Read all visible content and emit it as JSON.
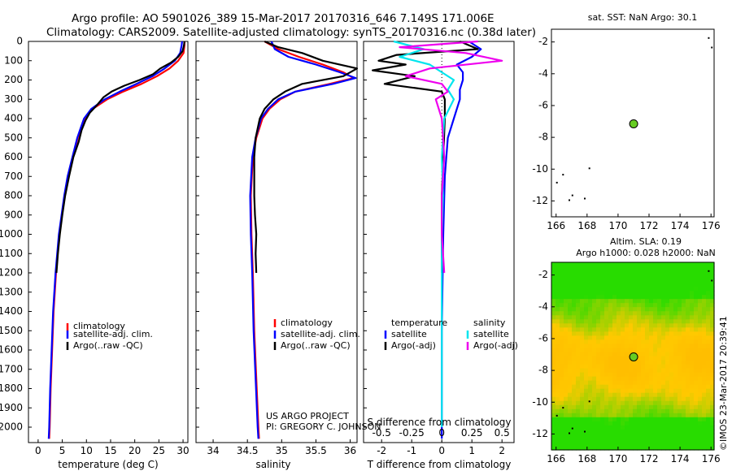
{
  "header": {
    "line1": "Argo profile: AO 5901026_389 15-Mar-2017 20170316_646 7.149S 171.006E",
    "line2": "Climatology: CARS2009. Satellite-adjusted climatology: synTS_20170316.nc (0.38d later)"
  },
  "colors": {
    "clim": "#ff0000",
    "sat": "#0000ff",
    "argo": "#000000",
    "sat_s": "#00e5ee",
    "argo_s": "#ee00ee",
    "marker": "#66cc22"
  },
  "depth_axis": {
    "ylim": [
      0,
      2080
    ],
    "ticks": [
      "0",
      "100",
      "200",
      "300",
      "400",
      "500",
      "600",
      "700",
      "800",
      "900",
      "1000",
      "1100",
      "1200",
      "1300",
      "1400",
      "1500",
      "1600",
      "1700",
      "1800",
      "1900",
      "2000"
    ]
  },
  "chart_data": [
    {
      "type": "line",
      "name": "temperature",
      "xlabel": "temperature (deg C)",
      "xlim": [
        -2,
        31
      ],
      "xticks": [
        "0",
        "5",
        "10",
        "15",
        "20",
        "25",
        "30"
      ],
      "legend": [
        "climatology",
        "satellite-adj. clim.",
        "Argo(..raw -QC)"
      ],
      "series": [
        {
          "name": "climatology",
          "color": "#ff0000",
          "depth": [
            0,
            20,
            60,
            100,
            140,
            180,
            220,
            260,
            300,
            350,
            400,
            450,
            500,
            600,
            700,
            800,
            1000,
            1200,
            1400,
            1600,
            1800,
            2000,
            2060
          ],
          "values": [
            30.3,
            30.3,
            30.1,
            29.0,
            27.2,
            24.6,
            21.4,
            17.6,
            14.3,
            11.3,
            9.6,
            8.9,
            8.2,
            7.2,
            6.2,
            5.5,
            4.4,
            3.7,
            3.2,
            2.9,
            2.6,
            2.4,
            2.3
          ]
        },
        {
          "name": "satellite-adj. clim.",
          "color": "#0000ff",
          "depth": [
            0,
            20,
            60,
            100,
            140,
            180,
            220,
            260,
            300,
            350,
            400,
            450,
            500,
            600,
            700,
            800,
            1000,
            1200,
            1400,
            1600,
            1800,
            2000,
            2060
          ],
          "values": [
            29.8,
            29.7,
            29.4,
            28.3,
            26.2,
            23.7,
            20.4,
            16.9,
            13.8,
            11.0,
            9.5,
            8.8,
            8.1,
            7.1,
            6.1,
            5.4,
            4.3,
            3.6,
            3.1,
            2.8,
            2.5,
            2.3,
            2.2
          ]
        },
        {
          "name": "Argo(..raw -QC)",
          "color": "#000000",
          "depth": [
            0,
            20,
            50,
            80,
            110,
            140,
            170,
            200,
            230,
            260,
            290,
            330,
            370,
            410,
            460,
            520,
            600,
            700,
            800,
            900,
            1000,
            1100,
            1200
          ],
          "values": [
            30.3,
            30.2,
            29.9,
            29.0,
            27.5,
            25.3,
            23.8,
            21.0,
            17.8,
            15.2,
            13.5,
            12.2,
            10.7,
            9.8,
            9.0,
            8.4,
            7.3,
            6.4,
            5.6,
            5.0,
            4.5,
            4.1,
            3.8
          ]
        }
      ]
    },
    {
      "type": "line",
      "name": "salinity",
      "xlabel": "salinity",
      "xlim": [
        33.75,
        36.1
      ],
      "xticks": [
        "34",
        "34.5",
        "35",
        "35.5",
        "36"
      ],
      "legend": [
        "climatology",
        "satellite-adj. clim.",
        "Argo(..raw -QC)"
      ],
      "series": [
        {
          "name": "climatology",
          "color": "#ff0000",
          "depth": [
            0,
            40,
            80,
            120,
            160,
            190,
            220,
            260,
            300,
            350,
            400,
            500,
            600,
            800,
            1000,
            1200,
            1500,
            2000,
            2060
          ],
          "values": [
            34.75,
            34.95,
            35.25,
            35.6,
            35.9,
            36.05,
            35.7,
            35.2,
            34.98,
            34.82,
            34.72,
            34.63,
            34.58,
            34.55,
            34.56,
            34.58,
            34.6,
            34.66,
            34.67
          ]
        },
        {
          "name": "satellite-adj. clim.",
          "color": "#0000ff",
          "depth": [
            0,
            40,
            80,
            120,
            160,
            190,
            220,
            260,
            300,
            350,
            400,
            500,
            600,
            800,
            1000,
            1200,
            1500,
            2000,
            2060
          ],
          "values": [
            34.85,
            34.9,
            35.1,
            35.5,
            35.85,
            36.08,
            35.75,
            35.2,
            34.95,
            34.8,
            34.7,
            34.62,
            34.57,
            34.54,
            34.55,
            34.57,
            34.59,
            34.65,
            34.66
          ]
        },
        {
          "name": "Argo(..raw -QC)",
          "color": "#000000",
          "depth": [
            0,
            30,
            60,
            100,
            140,
            180,
            220,
            260,
            300,
            350,
            400,
            500,
            600,
            700,
            800,
            900,
            1000,
            1100,
            1200
          ],
          "values": [
            34.75,
            34.95,
            35.3,
            35.6,
            36.1,
            35.9,
            35.3,
            35.05,
            34.88,
            34.75,
            34.68,
            34.62,
            34.6,
            34.6,
            34.6,
            34.61,
            34.63,
            34.62,
            34.63
          ]
        }
      ]
    },
    {
      "type": "line",
      "name": "difference from climatology",
      "xlabel": "T difference from climatology",
      "xlabel_top": "S difference from climatology",
      "xlim_T": [
        -2.6,
        2.4
      ],
      "xticks_T": [
        "-2",
        "-1",
        "0",
        "1",
        "2"
      ],
      "xticks_S": [
        "-0.5",
        "-0.25",
        "0",
        "0.25",
        "0.5"
      ],
      "legend_headers": [
        "temperature",
        "salinity"
      ],
      "legend": [
        "satellite",
        "Argo(-adj)",
        "satellite",
        "Argo(-adj)"
      ],
      "series": [
        {
          "name": "T satellite",
          "color": "#0000ff",
          "depth": [
            0,
            40,
            80,
            120,
            160,
            200,
            250,
            300,
            400,
            500,
            700,
            1000,
            1500,
            2000,
            2060
          ],
          "values": [
            0.9,
            1.3,
            1.0,
            0.5,
            0.7,
            0.7,
            0.6,
            0.6,
            0.4,
            0.2,
            0.1,
            0.05,
            0.0,
            0.0,
            0.0
          ]
        },
        {
          "name": "T Argo(-adj)",
          "color": "#000000",
          "depth": [
            0,
            40,
            70,
            100,
            120,
            150,
            180,
            220,
            260,
            300,
            400,
            600,
            800,
            1000,
            1100,
            1200
          ],
          "values": [
            0.6,
            1.2,
            -1.5,
            -2.1,
            -1.2,
            -2.3,
            -0.9,
            -1.9,
            0.0,
            0.1,
            0.1,
            0.05,
            0.0,
            0.0,
            0.0,
            0.0
          ]
        },
        {
          "name": "S satellite",
          "color": "#00e5ee",
          "depth": [
            0,
            40,
            80,
            120,
            160,
            200,
            250,
            300,
            400,
            600,
            800,
            1000,
            1500,
            2000
          ],
          "values": [
            -0.4,
            -0.15,
            -0.35,
            -0.1,
            0.0,
            0.1,
            0.05,
            0.1,
            0.02,
            0.0,
            0.01,
            0.0,
            0.0,
            0.0
          ]
        },
        {
          "name": "S Argo(-adj)",
          "color": "#ee00ee",
          "depth": [
            0,
            30,
            60,
            100,
            140,
            180,
            220,
            260,
            300,
            400,
            600,
            800,
            1000,
            1200
          ],
          "values": [
            0.3,
            -0.35,
            0.2,
            0.5,
            -0.1,
            -0.3,
            0.0,
            0.05,
            -0.05,
            0.0,
            0.02,
            0.0,
            0.0,
            0.02
          ]
        }
      ]
    },
    {
      "type": "scatter",
      "name": "satellite SST map",
      "title": "sat. SST: NaN Argo: 30.1",
      "xlim": [
        165.7,
        176.2
      ],
      "ylim": [
        -13,
        -1.2
      ],
      "xticks": [
        "166",
        "168",
        "170",
        "172",
        "174",
        "176"
      ],
      "yticks": [
        "-2",
        "-4",
        "-6",
        "-8",
        "-10",
        "-12"
      ],
      "argo_position": {
        "lon": 171.006,
        "lat": -7.149
      }
    },
    {
      "type": "heatmap",
      "name": "altimetry map",
      "title_line1": "Altim. SLA: 0.19",
      "title_line2": "Argo h1000: 0.028 h2000: NaN",
      "xlim": [
        165.7,
        176.2
      ],
      "ylim": [
        -13,
        -1.2
      ],
      "xticks": [
        "166",
        "168",
        "170",
        "172",
        "174",
        "176"
      ],
      "yticks": [
        "-2",
        "-4",
        "-6",
        "-8",
        "-10",
        "-12"
      ],
      "argo_position": {
        "lon": 171.006,
        "lat": -7.149
      }
    }
  ],
  "annotations": {
    "project": "US ARGO PROJECT",
    "pi": "PI: GREGORY C. JOHNSON",
    "credit": "©IMOS 23-Mar-2017 20:39:41"
  }
}
